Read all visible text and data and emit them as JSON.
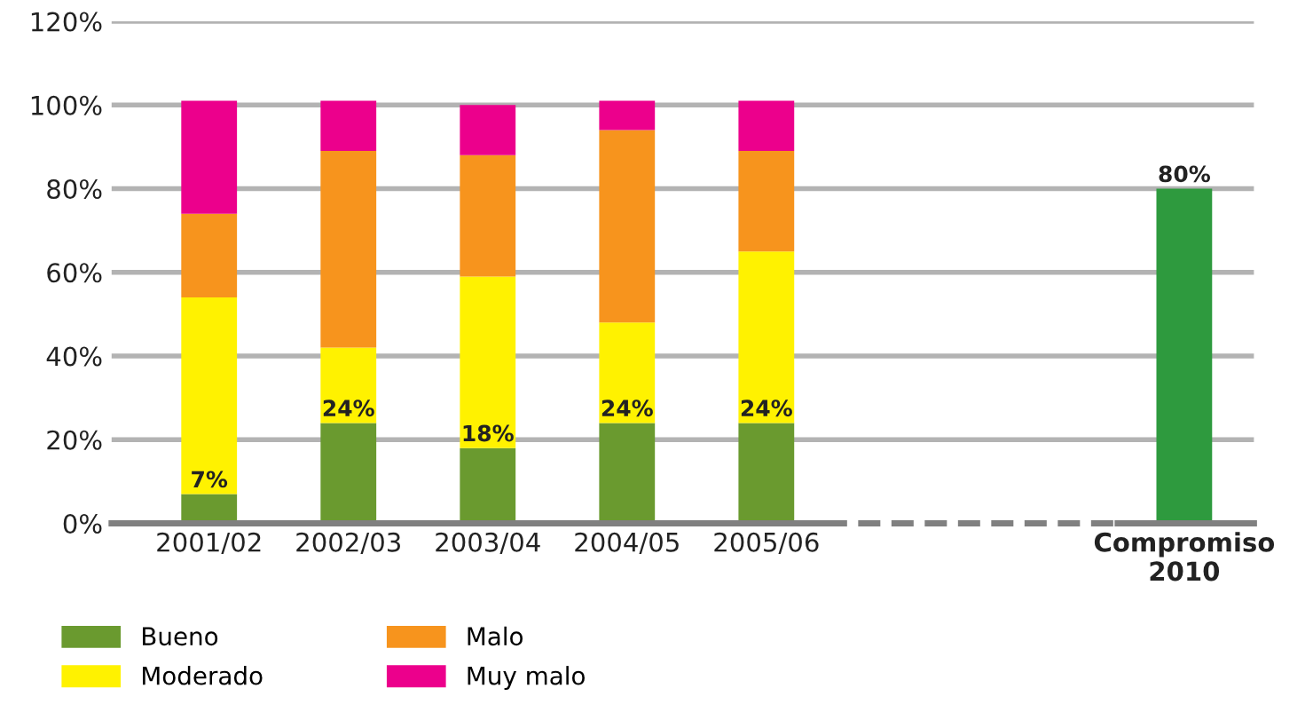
{
  "chart_data": {
    "type": "bar",
    "stacked": true,
    "categories": [
      "2001/02",
      "2002/03",
      "2003/04",
      "2004/05",
      "2005/06",
      null,
      null,
      "Compromiso\n2010"
    ],
    "series": [
      {
        "name": "Bueno",
        "color": "#6a9a2f",
        "values": [
          7,
          24,
          18,
          24,
          24,
          null,
          null,
          null
        ],
        "value_labels": [
          "7%",
          "24%",
          "18%",
          "24%",
          "24%",
          null,
          null,
          null
        ]
      },
      {
        "name": "Moderado",
        "color": "#fff200",
        "values": [
          47,
          18,
          41,
          24,
          41,
          null,
          null,
          null
        ]
      },
      {
        "name": "Malo",
        "color": "#f7941d",
        "values": [
          20,
          47,
          29,
          46,
          24,
          null,
          null,
          null
        ]
      },
      {
        "name": "Muy malo",
        "color": "#ec008c",
        "values": [
          27,
          12,
          12,
          7,
          12,
          null,
          null,
          null
        ]
      },
      {
        "color": "#2e9a3e",
        "values": [
          null,
          null,
          null,
          null,
          null,
          null,
          null,
          80
        ],
        "value_labels": [
          null,
          null,
          null,
          null,
          null,
          null,
          null,
          "80%"
        ]
      }
    ],
    "ylim": [
      0,
      120
    ],
    "yticks": [
      {
        "value": 0,
        "label": "0%"
      },
      {
        "value": 20,
        "label": "20%"
      },
      {
        "value": 40,
        "label": "40%"
      },
      {
        "value": 60,
        "label": "60%"
      },
      {
        "value": 80,
        "label": "80%"
      },
      {
        "value": 100,
        "label": "100%"
      },
      {
        "value": 120,
        "label": "120%"
      }
    ],
    "grid": "y",
    "legend": "bottom left"
  }
}
